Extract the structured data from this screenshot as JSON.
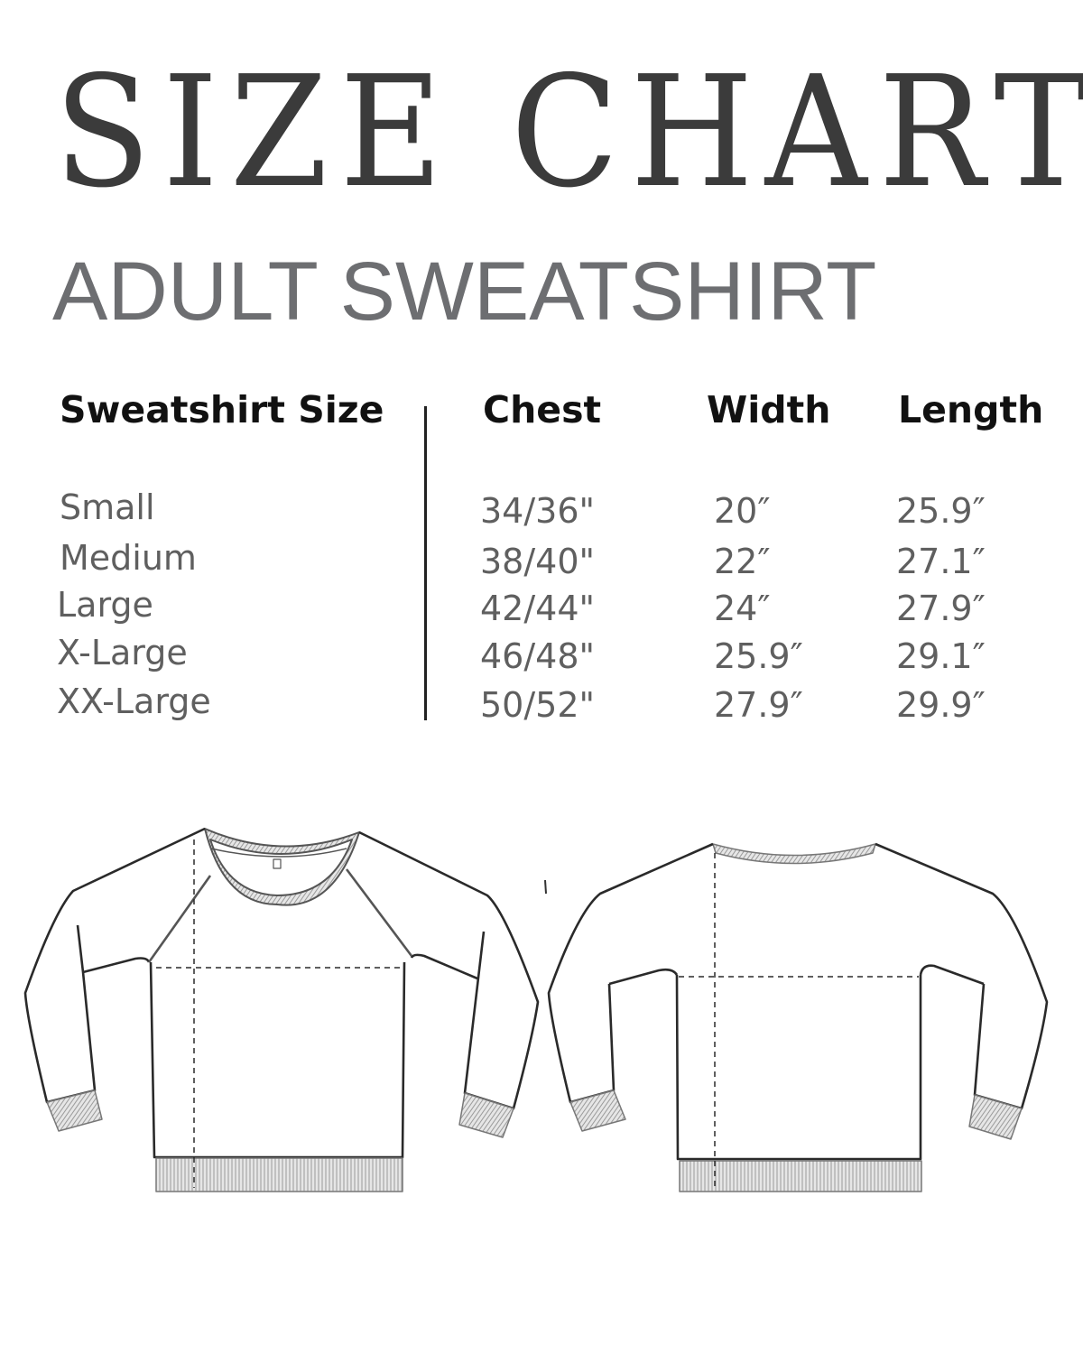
{
  "title": "SIZE CHART",
  "subtitle": "ADULT SWEATSHIRT",
  "table": {
    "headers": [
      "Sweatshirt Size",
      "Chest",
      "Width",
      "Length"
    ],
    "rows": [
      [
        "Small",
        "34/36\"",
        "20″",
        "25.9″"
      ],
      [
        "Medium",
        "38/40\"",
        "22″",
        "27.1″"
      ],
      [
        "Large",
        "42/44\"",
        "24″",
        "27.9″"
      ],
      [
        "X-Large",
        "46/48\"",
        "25.9″",
        "29.1″"
      ],
      [
        "XX-Large",
        "50/52\"",
        "27.9″",
        "29.9″"
      ]
    ]
  },
  "colors": {
    "title": "#3b3b3b",
    "subtitle": "#6d6e71",
    "header": "#111111",
    "cell": "#5f5f5f",
    "rib": "#c8c8c8"
  },
  "illustrations": [
    "sweatshirt-front",
    "sweatshirt-back"
  ]
}
